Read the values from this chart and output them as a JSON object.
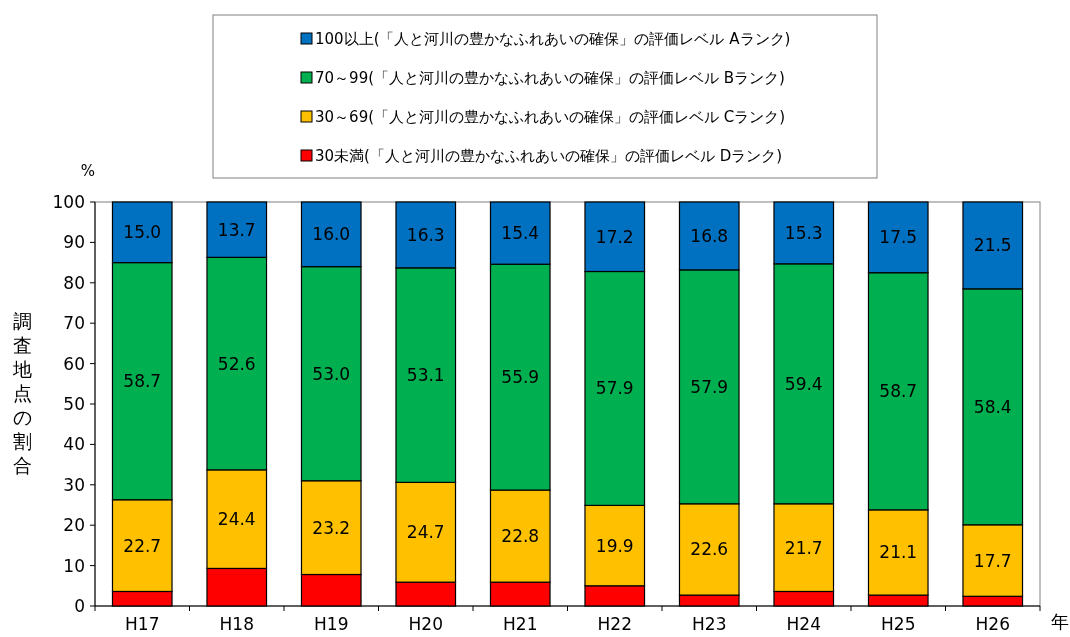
{
  "chart_data": {
    "type": "bar",
    "stacked": true,
    "ylabel": "調査地点の割合",
    "xlabel": "年",
    "annotations": [
      "%"
    ],
    "categories": [
      "H17",
      "H18",
      "H19",
      "H20",
      "H21",
      "H22",
      "H23",
      "H24",
      "H25",
      "H26"
    ],
    "ylim": [
      0,
      100
    ],
    "yticks": [
      0,
      10,
      20,
      30,
      40,
      50,
      60,
      70,
      80,
      90,
      100
    ],
    "grid": false,
    "legend": "top",
    "series": [
      {
        "name": "30未満(「人と河川の豊かなふれあいの確保」の評価レベル Dランク)",
        "color": "#ff0000",
        "values": [
          3.6,
          9.3,
          7.8,
          5.9,
          5.9,
          5.0,
          2.7,
          3.6,
          2.7,
          2.4
        ]
      },
      {
        "name": "30～69(「人と河川の豊かなふれあいの確保」の評価レベル Cランク)",
        "color": "#ffc000",
        "values": [
          22.7,
          24.4,
          23.2,
          24.7,
          22.8,
          19.9,
          22.6,
          21.7,
          21.1,
          17.7
        ],
        "value_labels": [
          "22.7",
          "24.4",
          "23.2",
          "24.7",
          "22.8",
          "19.9",
          "22.6",
          "21.7",
          "21.1",
          "17.7"
        ]
      },
      {
        "name": "70～99(「人と河川の豊かなふれあいの確保」の評価レベル Bランク)",
        "color": "#00b050",
        "values": [
          58.7,
          52.6,
          53.0,
          53.1,
          55.9,
          57.9,
          57.9,
          59.4,
          58.7,
          58.4
        ],
        "value_labels": [
          "58.7",
          "52.6",
          "53.0",
          "53.1",
          "55.9",
          "57.9",
          "57.9",
          "59.4",
          "58.7",
          "58.4"
        ]
      },
      {
        "name": "100以上(「人と河川の豊かなふれあいの確保」の評価レベル Aランク)",
        "color": "#0070c0",
        "values": [
          15.0,
          13.7,
          16.0,
          16.3,
          15.4,
          17.2,
          16.8,
          15.3,
          17.5,
          21.5
        ],
        "value_labels": [
          "15.0",
          "13.7",
          "16.0",
          "16.3",
          "15.4",
          "17.2",
          "16.8",
          "15.3",
          "17.5",
          "21.5"
        ]
      }
    ]
  }
}
